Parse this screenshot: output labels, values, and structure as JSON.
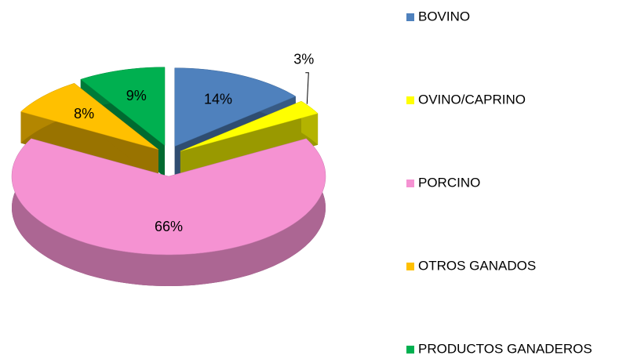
{
  "chart_data": {
    "type": "pie",
    "categories": [
      "BOVINO",
      "OVINO/CAPRINO",
      "PORCINO",
      "OTROS GANADOS",
      "PRODUCTOS GANADEROS"
    ],
    "values": [
      14,
      3,
      66,
      8,
      9
    ],
    "value_labels": [
      "14%",
      "3%",
      "66%",
      "8%",
      "9%"
    ],
    "colors": [
      "#4f81bd",
      "#ffff00",
      "#f592d2",
      "#ffc000",
      "#00b050"
    ],
    "legend": "right"
  }
}
